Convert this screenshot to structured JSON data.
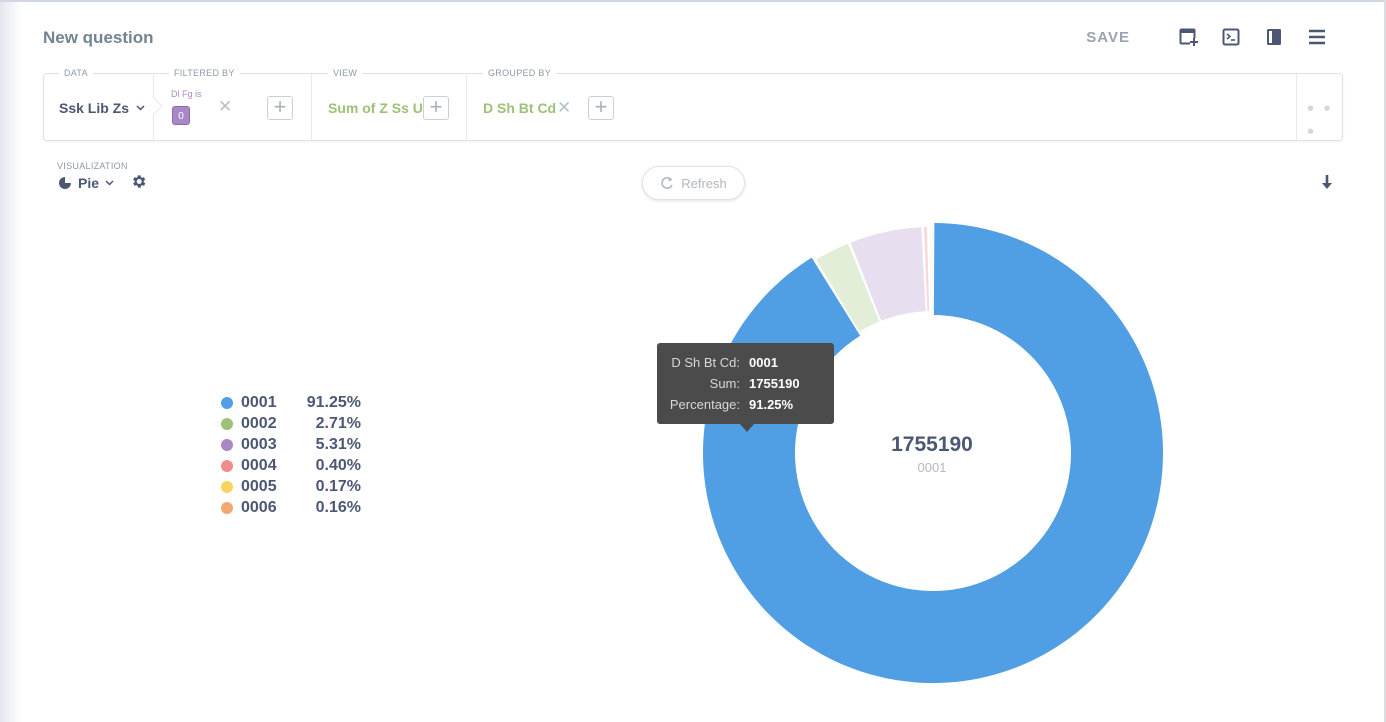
{
  "header": {
    "title": "New question",
    "save_label": "SAVE",
    "icons": [
      "add-to-dashboard-icon",
      "sql-editor-icon",
      "notebook-icon",
      "menu-icon"
    ]
  },
  "query": {
    "data": {
      "label": "DATA",
      "value": "Ssk Lib Zs"
    },
    "filter": {
      "label": "FILTERED BY",
      "name": "Dl Fg is",
      "value": "0"
    },
    "view": {
      "label": "VIEW",
      "value": "Sum of Z Ss U"
    },
    "group": {
      "label": "GROUPED BY",
      "value": "D Sh Bt Cd"
    },
    "more": "• • •"
  },
  "visualization": {
    "label": "VISUALIZATION",
    "type": "Pie",
    "refresh_label": "Refresh"
  },
  "legend": {
    "items": [
      {
        "name": "0001",
        "pct": "91.25%",
        "color": "#509ee3"
      },
      {
        "name": "0002",
        "pct": "2.71%",
        "color": "#9cc177"
      },
      {
        "name": "0003",
        "pct": "5.31%",
        "color": "#a989c5"
      },
      {
        "name": "0004",
        "pct": "0.40%",
        "color": "#ef8c8c"
      },
      {
        "name": "0005",
        "pct": "0.17%",
        "color": "#f9d45c"
      },
      {
        "name": "0006",
        "pct": "0.16%",
        "color": "#f2a86f"
      }
    ]
  },
  "center": {
    "value": "1755190",
    "label": "0001"
  },
  "tooltip": {
    "rows": [
      {
        "key": "D Sh Bt Cd:",
        "value": "0001"
      },
      {
        "key": "Sum:",
        "value": "1755190"
      },
      {
        "key": "Percentage:",
        "value": "91.25%"
      }
    ]
  },
  "chart_data": {
    "type": "pie",
    "categories": [
      "0001",
      "0002",
      "0003",
      "0004",
      "0005",
      "0006"
    ],
    "values": [
      91.25,
      2.71,
      5.31,
      0.4,
      0.17,
      0.16
    ],
    "active": "0001",
    "colors": [
      "#509ee3",
      "#9cc177",
      "#a989c5",
      "#ef8c8c",
      "#f9d45c",
      "#f2a86f"
    ],
    "dim_colors": [
      "#509ee3",
      "#e3eed9",
      "#e7dff0",
      "#f7d9d9",
      "#fbf1d3",
      "#fbe4d3"
    ]
  }
}
